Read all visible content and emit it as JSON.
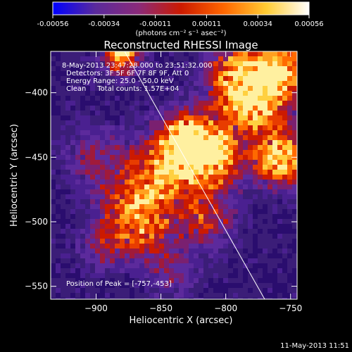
{
  "colorbar": {
    "ticks": [
      "-0.00056",
      "-0.00034",
      "-0.00011",
      "0.00011",
      "0.00034",
      "0.00056"
    ],
    "units_label": "(photons cm⁻² s⁻¹ asec⁻²)",
    "range": [
      -0.00056,
      0.00056
    ],
    "stops": [
      "#0000ff",
      "#5a2a9c",
      "#8a2a7a",
      "#cc1a00",
      "#ff6600",
      "#ffcc33",
      "#ffffff"
    ]
  },
  "chart_data": {
    "type": "heatmap",
    "title": "Reconstructed RHESSI Image",
    "xlabel": "Heliocentric X (arcsec)",
    "ylabel": "Heliocentric Y (arcsec)",
    "xlim": [
      -935,
      -745
    ],
    "ylim": [
      -560,
      -368
    ],
    "x_ticks": [
      -900,
      -850,
      -800,
      -750
    ],
    "y_ticks": [
      -400,
      -450,
      -500,
      -550
    ],
    "limb_line": {
      "x1": -878,
      "y1": -368,
      "x2": -770,
      "y2": -560
    },
    "annotations": [
      "8-May-2013 23:47:28.000 to 23:51:32.000",
      "Detectors: 3F 5F 6F 7F 8F 9F, Att 0",
      "Energy Range: 25.0 - 50.0 keV",
      "Clean     Total counts: 1.57E+04"
    ],
    "peak_label": "Position of Peak = [-757,-453]",
    "peak_position": [
      -757,
      -453
    ],
    "emission_blobs": [
      {
        "x": -880,
        "y": -372,
        "intensity": 0.95,
        "radius": 10
      },
      {
        "x": -830,
        "y": -437,
        "intensity": 1.0,
        "radius": 16
      },
      {
        "x": -810,
        "y": -452,
        "intensity": 0.85,
        "radius": 18
      },
      {
        "x": -757,
        "y": -453,
        "intensity": 1.0,
        "radius": 14
      },
      {
        "x": -775,
        "y": -410,
        "intensity": 0.85,
        "radius": 20
      },
      {
        "x": -790,
        "y": -385,
        "intensity": 0.75,
        "radius": 18
      },
      {
        "x": -755,
        "y": -380,
        "intensity": 0.8,
        "radius": 14
      },
      {
        "x": -850,
        "y": -465,
        "intensity": 0.7,
        "radius": 20
      },
      {
        "x": -875,
        "y": -490,
        "intensity": 0.55,
        "radius": 18
      },
      {
        "x": -860,
        "y": -510,
        "intensity": 0.45,
        "radius": 16
      },
      {
        "x": -815,
        "y": -500,
        "intensity": 0.5,
        "radius": 16
      },
      {
        "x": -895,
        "y": -520,
        "intensity": 0.35,
        "radius": 14
      },
      {
        "x": -840,
        "y": -540,
        "intensity": 0.3,
        "radius": 14
      },
      {
        "x": -900,
        "y": -450,
        "intensity": 0.35,
        "radius": 18
      }
    ]
  },
  "footer": {
    "timestamp": "11-May-2013 11:51"
  }
}
